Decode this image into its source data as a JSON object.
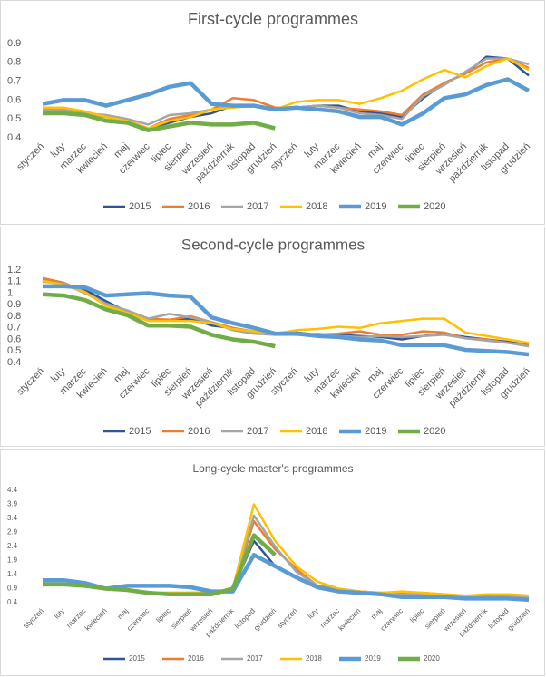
{
  "chart_data": [
    {
      "type": "line",
      "title": "First-cycle programmes",
      "categories": [
        "styczeń",
        "luty",
        "marzec",
        "kwiecień",
        "maj",
        "czerwiec",
        "lipiec",
        "sierpień",
        "wrzesień",
        "październik",
        "listopad",
        "grudzień",
        "styczeń",
        "luty",
        "marzec",
        "kwiecień",
        "maj",
        "czerwiec",
        "lipiec",
        "sierpień",
        "wrzesień",
        "październik",
        "listopad",
        "grudzień"
      ],
      "ylim": [
        0.4,
        0.9
      ],
      "yticks": [
        0.4,
        0.5,
        0.6,
        0.7,
        0.8,
        0.9
      ],
      "grid": false,
      "legend": "bottom",
      "series": [
        {
          "name": "2015",
          "color": "#2f5597",
          "line_width": 2.5,
          "values": [
            0.55,
            0.55,
            0.53,
            0.51,
            0.49,
            0.45,
            0.48,
            0.51,
            0.53,
            0.57,
            0.57,
            0.55,
            0.56,
            0.57,
            0.57,
            0.54,
            0.53,
            0.51,
            0.61,
            0.69,
            0.74,
            0.83,
            0.82,
            0.73
          ]
        },
        {
          "name": "2016",
          "color": "#ed7d31",
          "line_width": 2.5,
          "values": [
            0.55,
            0.55,
            0.53,
            0.51,
            0.49,
            0.45,
            0.5,
            0.52,
            0.55,
            0.61,
            0.6,
            0.56,
            0.56,
            0.57,
            0.56,
            0.55,
            0.54,
            0.52,
            0.63,
            0.69,
            0.74,
            0.8,
            0.82,
            0.77
          ]
        },
        {
          "name": "2017",
          "color": "#a5a5a5",
          "line_width": 2.5,
          "values": [
            0.55,
            0.55,
            0.53,
            0.52,
            0.5,
            0.47,
            0.52,
            0.53,
            0.55,
            0.57,
            0.57,
            0.55,
            0.56,
            0.57,
            0.56,
            0.53,
            0.52,
            0.5,
            0.62,
            0.68,
            0.75,
            0.82,
            0.82,
            0.79
          ]
        },
        {
          "name": "2018",
          "color": "#ffc000",
          "line_width": 2.5,
          "values": [
            0.56,
            0.56,
            0.54,
            0.51,
            0.49,
            0.45,
            0.49,
            0.51,
            0.55,
            0.56,
            0.57,
            0.55,
            0.59,
            0.6,
            0.6,
            0.58,
            0.61,
            0.65,
            0.71,
            0.76,
            0.72,
            0.78,
            0.82,
            0.76
          ]
        },
        {
          "name": "2019",
          "color": "#5b9bd5",
          "line_width": 4.5,
          "values": [
            0.58,
            0.6,
            0.6,
            0.57,
            0.6,
            0.63,
            0.67,
            0.69,
            0.58,
            0.57,
            0.57,
            0.55,
            0.56,
            0.55,
            0.54,
            0.51,
            0.51,
            0.47,
            0.53,
            0.61,
            0.63,
            0.68,
            0.71,
            0.65
          ]
        },
        {
          "name": "2020",
          "color": "#70ad47",
          "line_width": 4.5,
          "values": [
            0.53,
            0.53,
            0.52,
            0.49,
            0.48,
            0.44,
            0.46,
            0.48,
            0.47,
            0.47,
            0.48,
            0.45,
            null,
            null,
            null,
            null,
            null,
            null,
            null,
            null,
            null,
            null,
            null,
            null
          ]
        }
      ]
    },
    {
      "type": "line",
      "title": "Second-cycle programmes",
      "categories": [
        "styczeń",
        "luty",
        "marzec",
        "kwiecień",
        "maj",
        "czerwiec",
        "lipiec",
        "sierpień",
        "wrzesień",
        "październik",
        "listopad",
        "grudzień",
        "styczeń",
        "luty",
        "marzec",
        "kwiecień",
        "maj",
        "czerwiec",
        "lipiec",
        "sierpień",
        "wrzesień",
        "październik",
        "listopad",
        "grudzień"
      ],
      "ylim": [
        0.4,
        1.2
      ],
      "yticks": [
        0.4,
        0.5,
        0.6,
        0.7,
        0.8,
        0.9,
        1,
        1.1,
        1.2
      ],
      "grid": false,
      "legend": "bottom",
      "series": [
        {
          "name": "2015",
          "color": "#2f5597",
          "line_width": 2.5,
          "values": [
            1.12,
            1.08,
            1.03,
            0.93,
            0.84,
            0.77,
            0.77,
            0.78,
            0.72,
            0.7,
            0.66,
            0.64,
            0.66,
            0.64,
            0.64,
            0.63,
            0.62,
            0.6,
            0.63,
            0.65,
            0.62,
            0.6,
            0.58,
            0.55
          ]
        },
        {
          "name": "2016",
          "color": "#ed7d31",
          "line_width": 2.5,
          "values": [
            1.13,
            1.09,
            1.01,
            0.9,
            0.85,
            0.78,
            0.77,
            0.8,
            0.75,
            0.7,
            0.67,
            0.65,
            0.64,
            0.64,
            0.65,
            0.67,
            0.64,
            0.64,
            0.67,
            0.66,
            0.61,
            0.6,
            0.57,
            0.55
          ]
        },
        {
          "name": "2017",
          "color": "#a5a5a5",
          "line_width": 2.5,
          "values": [
            1.1,
            1.08,
            1.0,
            0.91,
            0.85,
            0.78,
            0.82,
            0.79,
            0.75,
            0.68,
            0.65,
            0.64,
            0.64,
            0.65,
            0.63,
            0.62,
            0.63,
            0.62,
            0.63,
            0.64,
            0.61,
            0.59,
            0.57,
            0.54
          ]
        },
        {
          "name": "2018",
          "color": "#ffc000",
          "line_width": 2.5,
          "values": [
            1.11,
            1.07,
            1.01,
            0.89,
            0.83,
            0.76,
            0.76,
            0.76,
            0.74,
            0.69,
            0.67,
            0.65,
            0.68,
            0.69,
            0.71,
            0.7,
            0.74,
            0.76,
            0.78,
            0.78,
            0.66,
            0.63,
            0.6,
            0.57
          ]
        },
        {
          "name": "2019",
          "color": "#5b9bd5",
          "line_width": 4.5,
          "values": [
            1.06,
            1.06,
            1.05,
            0.98,
            0.99,
            1.0,
            0.98,
            0.97,
            0.79,
            0.74,
            0.7,
            0.65,
            0.65,
            0.63,
            0.62,
            0.6,
            0.59,
            0.55,
            0.55,
            0.55,
            0.51,
            0.5,
            0.49,
            0.47
          ]
        },
        {
          "name": "2020",
          "color": "#70ad47",
          "line_width": 4.5,
          "values": [
            0.99,
            0.98,
            0.94,
            0.86,
            0.81,
            0.72,
            0.72,
            0.71,
            0.64,
            0.6,
            0.58,
            0.54,
            null,
            null,
            null,
            null,
            null,
            null,
            null,
            null,
            null,
            null,
            null,
            null
          ]
        }
      ]
    },
    {
      "type": "line",
      "title": "Long-cycle master's programmes",
      "categories": [
        "styczeń",
        "luty",
        "marzec",
        "kwiecień",
        "maj",
        "czerwiec",
        "lipiec",
        "sierpień",
        "wrzesień",
        "październik",
        "listopad",
        "grudzień",
        "styczeń",
        "luty",
        "marzec",
        "kwiecień",
        "maj",
        "czerwiec",
        "lipiec",
        "sierpień",
        "wrzesień",
        "październik",
        "listopad",
        "grudzień"
      ],
      "ylim": [
        0.4,
        4.4
      ],
      "yticks": [
        0.4,
        0.9,
        1.4,
        1.9,
        2.4,
        2.9,
        3.4,
        3.9,
        4.4
      ],
      "grid": false,
      "legend": "bottom",
      "series": [
        {
          "name": "2015",
          "color": "#2f5597",
          "line_width": 2.5,
          "values": [
            1.05,
            1.05,
            1.0,
            0.9,
            0.85,
            0.75,
            0.7,
            0.75,
            0.75,
            0.9,
            2.6,
            1.7,
            1.3,
            0.95,
            0.85,
            0.75,
            0.7,
            0.7,
            0.65,
            0.65,
            0.6,
            0.6,
            0.6,
            0.55
          ]
        },
        {
          "name": "2016",
          "color": "#ed7d31",
          "line_width": 2.5,
          "values": [
            1.05,
            1.05,
            1.0,
            0.9,
            0.85,
            0.75,
            0.75,
            0.75,
            0.75,
            0.9,
            3.3,
            2.3,
            1.6,
            1.0,
            0.9,
            0.8,
            0.75,
            0.75,
            0.75,
            0.7,
            0.65,
            0.65,
            0.7,
            0.65
          ]
        },
        {
          "name": "2017",
          "color": "#a5a5a5",
          "line_width": 2.5,
          "values": [
            1.05,
            1.05,
            1.0,
            0.9,
            0.85,
            0.75,
            0.75,
            0.75,
            0.75,
            0.9,
            3.5,
            2.4,
            1.5,
            1.0,
            0.85,
            0.8,
            0.75,
            0.7,
            0.7,
            0.65,
            0.6,
            0.6,
            0.65,
            0.6
          ]
        },
        {
          "name": "2018",
          "color": "#ffc000",
          "line_width": 2.5,
          "values": [
            1.05,
            1.05,
            1.0,
            0.9,
            0.85,
            0.75,
            0.75,
            0.75,
            0.75,
            0.9,
            3.9,
            2.6,
            1.7,
            1.15,
            0.9,
            0.8,
            0.75,
            0.8,
            0.75,
            0.7,
            0.65,
            0.7,
            0.7,
            0.65
          ]
        },
        {
          "name": "2019",
          "color": "#5b9bd5",
          "line_width": 4.5,
          "values": [
            1.2,
            1.2,
            1.1,
            0.9,
            1.0,
            1.0,
            1.0,
            0.95,
            0.8,
            0.8,
            2.1,
            1.7,
            1.3,
            0.95,
            0.8,
            0.75,
            0.7,
            0.6,
            0.6,
            0.6,
            0.55,
            0.55,
            0.55,
            0.5
          ]
        },
        {
          "name": "2020",
          "color": "#70ad47",
          "line_width": 4.5,
          "values": [
            1.05,
            1.05,
            1.0,
            0.9,
            0.85,
            0.75,
            0.7,
            0.7,
            0.7,
            0.9,
            2.8,
            2.1,
            null,
            null,
            null,
            null,
            null,
            null,
            null,
            null,
            null,
            null,
            null,
            null
          ]
        }
      ]
    }
  ]
}
